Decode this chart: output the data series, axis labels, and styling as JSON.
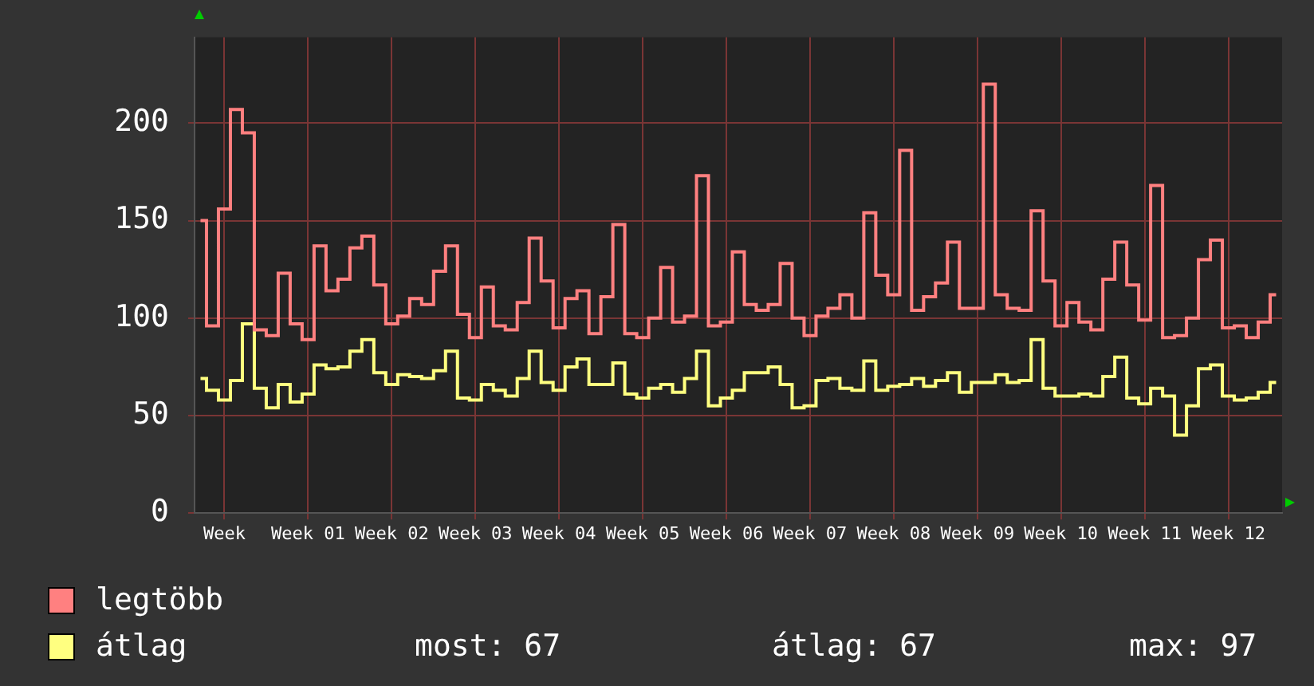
{
  "chart_data": {
    "type": "step",
    "categories": [
      null,
      null,
      "Week",
      null,
      null,
      null,
      null,
      null,
      null,
      "Week 01",
      null,
      null,
      null,
      null,
      null,
      null,
      "Week 02",
      null,
      null,
      null,
      null,
      null,
      null,
      "Week 03",
      null,
      null,
      null,
      null,
      null,
      null,
      "Week 04",
      null,
      null,
      null,
      null,
      null,
      null,
      "Week 05",
      null,
      null,
      null,
      null,
      null,
      null,
      "Week 06",
      null,
      null,
      null,
      null,
      null,
      null,
      "Week 07",
      null,
      null,
      null,
      null,
      null,
      null,
      "Week 08",
      null,
      null,
      null,
      null,
      null,
      null,
      "Week 09",
      null,
      null,
      null,
      null,
      null,
      null,
      "Week 10",
      null,
      null,
      null,
      null,
      null,
      null,
      "Week 11",
      null,
      null,
      null,
      null,
      null,
      null,
      "Week 12",
      null,
      null,
      null,
      null
    ],
    "series": [
      {
        "name": "legtöbb",
        "color": "#ff8080",
        "values": [
          150,
          96,
          156,
          207,
          195,
          94,
          91,
          123,
          97,
          89,
          137,
          114,
          120,
          136,
          142,
          117,
          97,
          101,
          110,
          107,
          124,
          137,
          102,
          90,
          116,
          96,
          94,
          108,
          141,
          119,
          95,
          110,
          114,
          92,
          111,
          148,
          92,
          90,
          100,
          126,
          98,
          101,
          173,
          96,
          98,
          134,
          107,
          104,
          107,
          128,
          100,
          91,
          101,
          105,
          112,
          100,
          154,
          122,
          112,
          186,
          104,
          111,
          118,
          139,
          105,
          105,
          220,
          112,
          105,
          104,
          155,
          119,
          96,
          108,
          98,
          94,
          120,
          139,
          117,
          99,
          168,
          90,
          91,
          100,
          130,
          140,
          95,
          96,
          90,
          98,
          112
        ]
      },
      {
        "name": "átlag",
        "color": "#ffff80",
        "values": [
          69,
          63,
          58,
          68,
          97,
          64,
          54,
          66,
          57,
          61,
          76,
          74,
          75,
          83,
          89,
          72,
          66,
          71,
          70,
          69,
          73,
          83,
          59,
          58,
          66,
          63,
          60,
          69,
          83,
          67,
          63,
          75,
          79,
          66,
          66,
          77,
          61,
          59,
          64,
          66,
          62,
          69,
          83,
          55,
          59,
          63,
          72,
          72,
          75,
          66,
          54,
          55,
          68,
          69,
          64,
          63,
          78,
          63,
          65,
          66,
          69,
          65,
          68,
          72,
          62,
          67,
          67,
          71,
          67,
          68,
          89,
          64,
          60,
          60,
          61,
          60,
          70,
          80,
          59,
          56,
          64,
          60,
          40,
          55,
          74,
          76,
          60,
          58,
          59,
          62,
          67
        ]
      }
    ],
    "ylim": [
      0,
      244
    ],
    "yticks": [
      0,
      50,
      100,
      150,
      200
    ],
    "grid": true,
    "legend": "bottom",
    "annotations": [
      "most: 67",
      "átlag: 67",
      "max: 97"
    ]
  }
}
